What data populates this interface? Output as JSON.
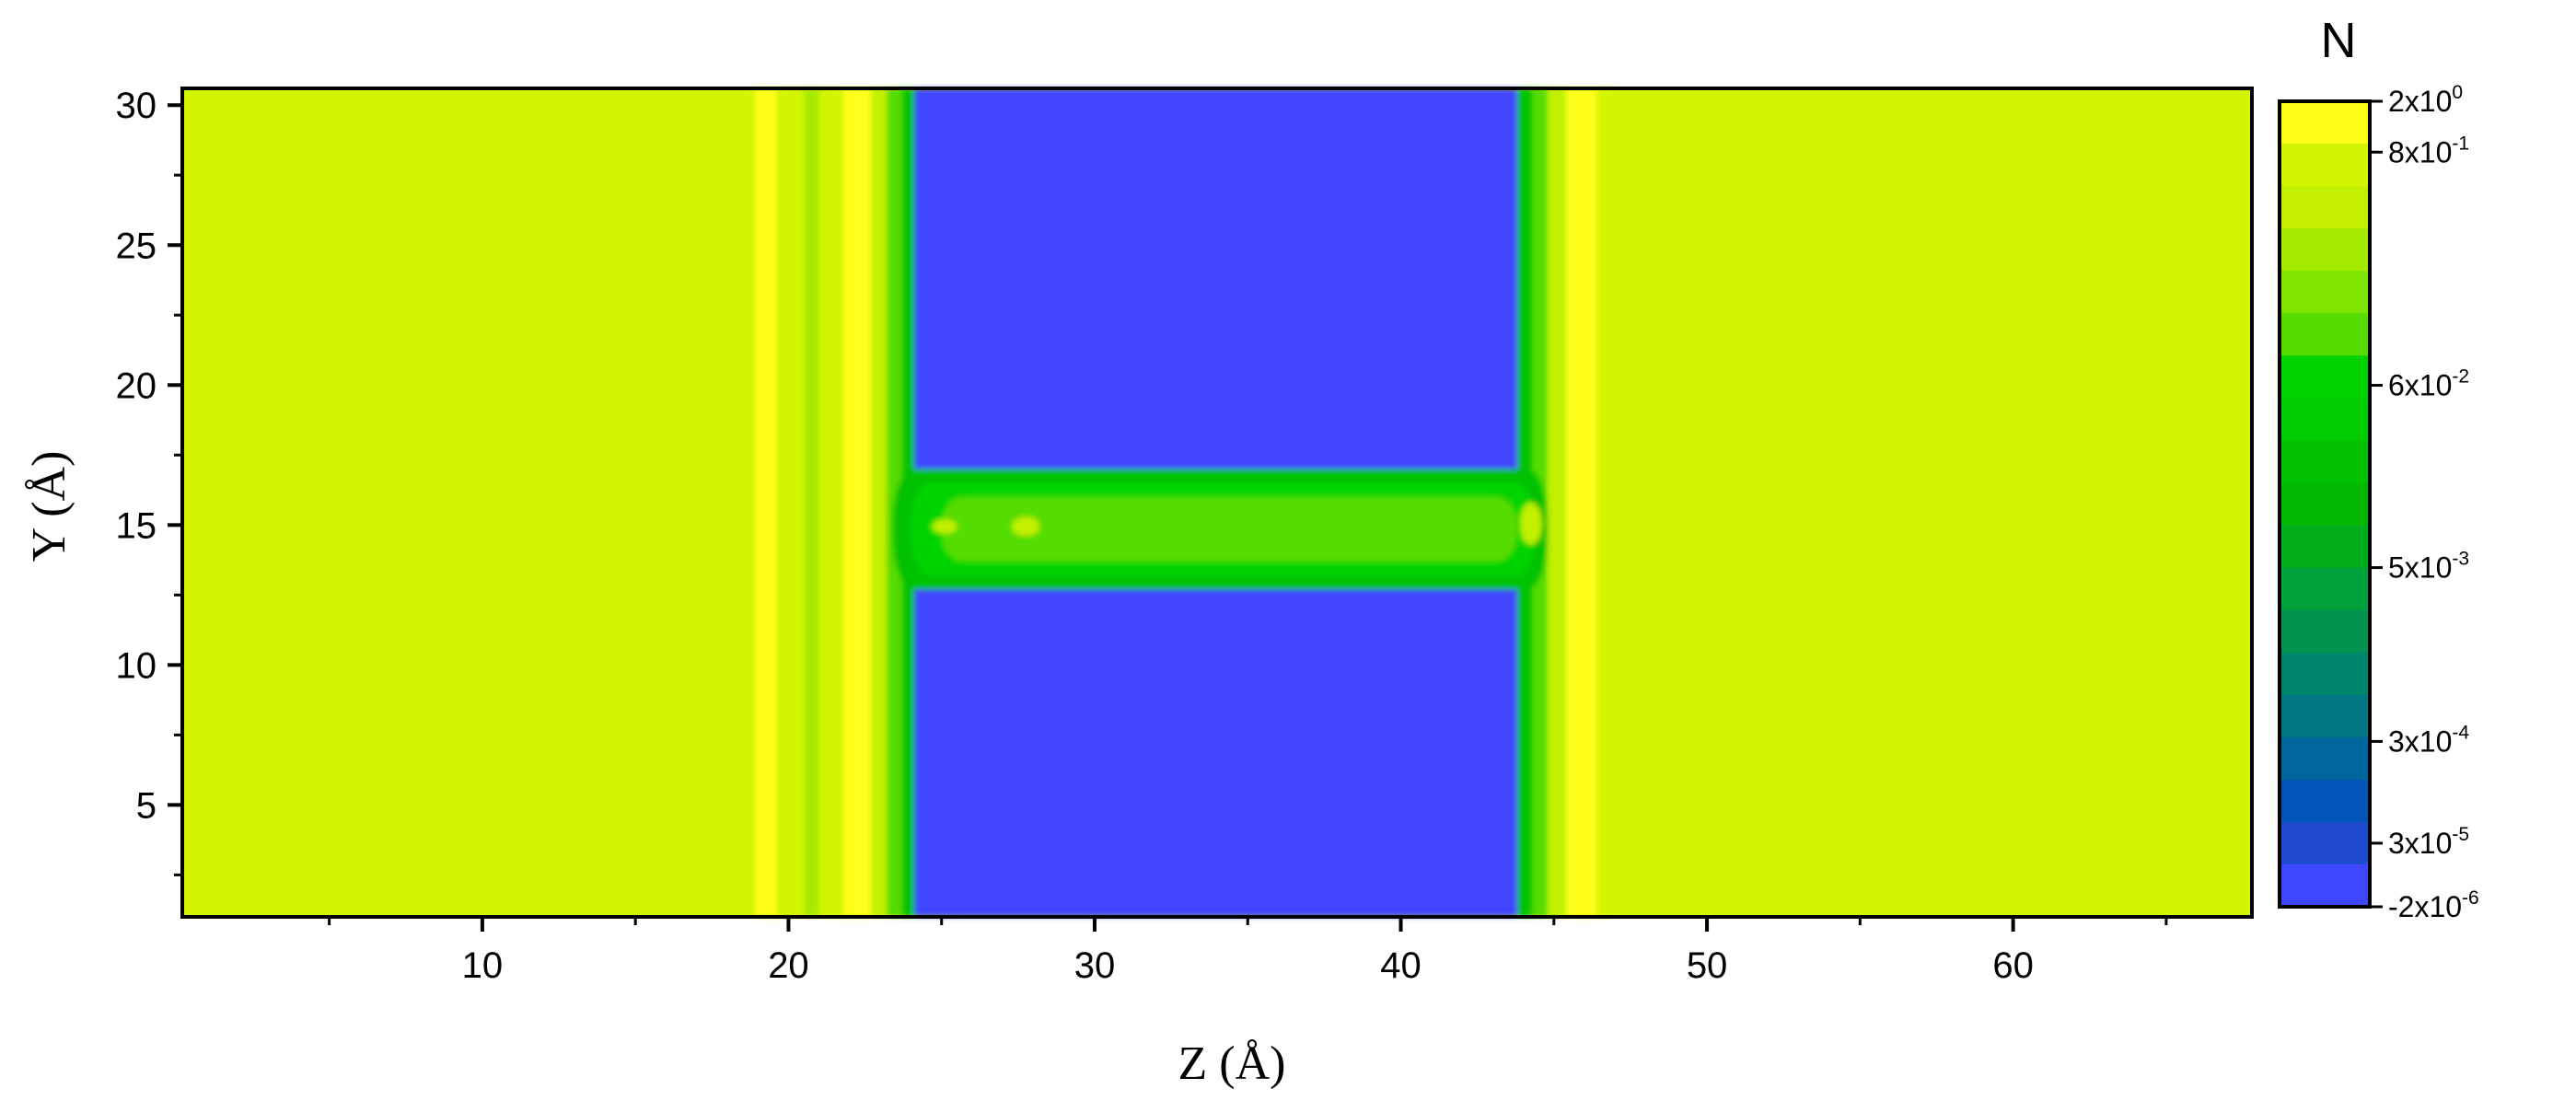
{
  "chart_data": {
    "type": "heatmap",
    "title": "",
    "xlabel": "Z (Å)",
    "ylabel": "Y (Å)",
    "xlim": [
      0.2,
      67.8
    ],
    "ylim": [
      1.0,
      30.6
    ],
    "x_ticks": [
      10,
      20,
      30,
      40,
      50,
      60
    ],
    "y_ticks": [
      5,
      10,
      15,
      20,
      25,
      30
    ],
    "x_minor_step": 5,
    "y_minor_step": 2.5,
    "grid": false,
    "colorbar": {
      "title": "N",
      "labels": [
        {
          "base": "2x10",
          "exp": "0",
          "value": 2
        },
        {
          "base": "8x10",
          "exp": "-1",
          "value": 0.8
        },
        {
          "base": "6x10",
          "exp": "-2",
          "value": 0.06
        },
        {
          "base": "5x10",
          "exp": "-3",
          "value": 0.005
        },
        {
          "base": "3x10",
          "exp": "-4",
          "value": 0.0003
        },
        {
          "base": "3x10",
          "exp": "-5",
          "value": 3e-05
        },
        {
          "base": "-2x10",
          "exp": "-6",
          "value": -2e-06
        }
      ],
      "colors_top_to_bottom": [
        "#ffff1a",
        "#d4f500",
        "#c2f000",
        "#a6ea00",
        "#7fe400",
        "#55dc00",
        "#00d400",
        "#00cc00",
        "#00c200",
        "#00b800",
        "#00ad1a",
        "#00a03a",
        "#009450",
        "#00866a",
        "#007884",
        "#00669e",
        "#0056b8",
        "#1f4ccc",
        "#3f46ff"
      ]
    },
    "background_level": 0.8,
    "regions": [
      {
        "kind": "band",
        "z": [
          18.9,
          19.6
        ],
        "level": 2
      },
      {
        "kind": "band",
        "z": [
          19.6,
          20.5
        ],
        "level": 0.7
      },
      {
        "kind": "band",
        "z": [
          20.5,
          21.0
        ],
        "level": 0.2
      },
      {
        "kind": "band",
        "z": [
          21.0,
          21.8
        ],
        "level": 0.7
      },
      {
        "kind": "band",
        "z": [
          21.8,
          22.7
        ],
        "level": 2
      },
      {
        "kind": "band",
        "z": [
          22.7,
          23.2
        ],
        "level": 0.3
      },
      {
        "kind": "band",
        "z": [
          23.2,
          23.7
        ],
        "level": 0.06
      },
      {
        "kind": "band",
        "z": [
          23.7,
          24.1
        ],
        "level": 0.005
      },
      {
        "kind": "band",
        "z": [
          24.1,
          43.8
        ],
        "level": -2e-06
      },
      {
        "kind": "band",
        "z": [
          43.8,
          44.3
        ],
        "level": 0.005
      },
      {
        "kind": "band",
        "z": [
          44.3,
          44.8
        ],
        "level": 0.06
      },
      {
        "kind": "band",
        "z": [
          44.8,
          45.4
        ],
        "level": 0.3
      },
      {
        "kind": "band",
        "z": [
          45.4,
          46.4
        ],
        "level": 2
      },
      {
        "kind": "band",
        "z": [
          46.4,
          47.0
        ],
        "level": 0.7
      },
      {
        "kind": "channel",
        "z": [
          23.4,
          44.8
        ],
        "y": [
          12.7,
          17.0
        ],
        "level": 0.005
      },
      {
        "kind": "channel",
        "z": [
          24.0,
          44.4
        ],
        "y": [
          13.2,
          16.5
        ],
        "level": 0.02
      },
      {
        "kind": "channel",
        "z": [
          25.0,
          43.8
        ],
        "y": [
          13.7,
          16.0
        ],
        "level": 0.06
      },
      {
        "kind": "spot",
        "z": [
          27.3,
          28.2
        ],
        "y": [
          14.6,
          15.3
        ],
        "level": 0.3
      },
      {
        "kind": "spot",
        "z": [
          24.7,
          25.5
        ],
        "y": [
          14.7,
          15.2
        ],
        "level": 0.3
      },
      {
        "kind": "spot",
        "z": [
          43.9,
          44.6
        ],
        "y": [
          14.3,
          15.8
        ],
        "level": 0.3
      }
    ]
  }
}
